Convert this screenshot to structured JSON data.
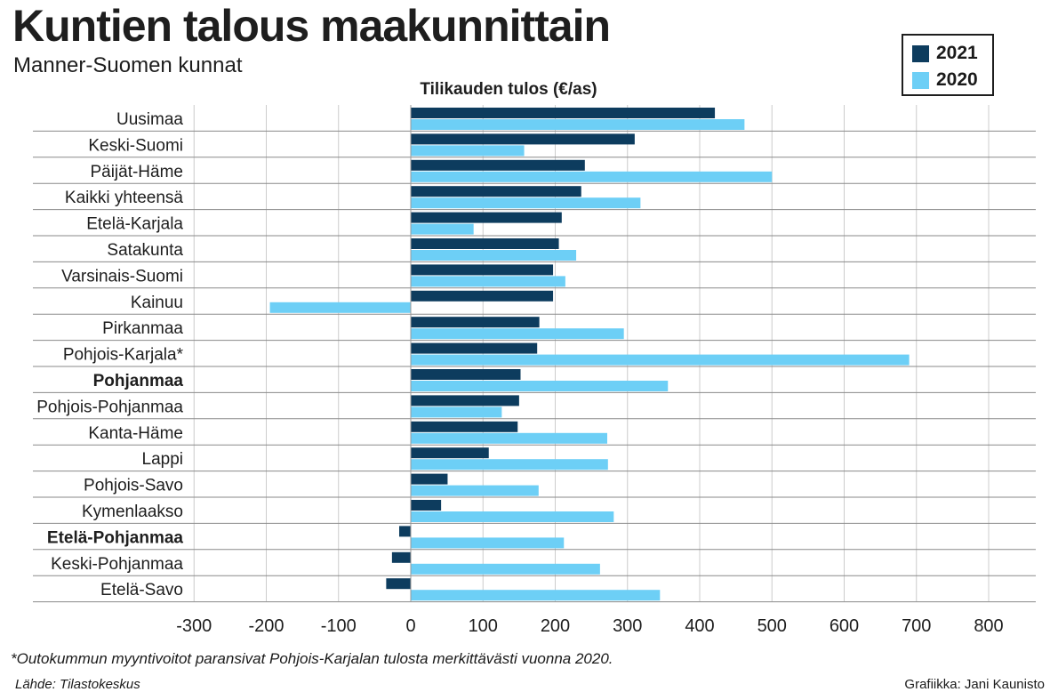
{
  "header": {
    "title": "Kuntien talous maakunnittain",
    "subtitle": "Manner-Suomen kunnat"
  },
  "colors": {
    "series_2021": "#0d3c5e",
    "series_2020": "#6dcff6",
    "row_line": "#8a8a8a",
    "grid": "#cccccc"
  },
  "chart_data": {
    "type": "bar",
    "orientation": "horizontal",
    "title": "Tilikauden tulos (€/as)",
    "categories": [
      "Uusimaa",
      "Keski-Suomi",
      "Päijät-Häme",
      "Kaikki yhteensä",
      "Etelä-Karjala",
      "Satakunta",
      "Varsinais-Suomi",
      "Kainuu",
      "Pirkanmaa",
      "Pohjois-Karjala*",
      "Pohjanmaa",
      "Pohjois-Pohjanmaa",
      "Kanta-Häme",
      "Lappi",
      "Pohjois-Savo",
      "Kymenlaakso",
      "Etelä-Pohjanmaa",
      "Keski-Pohjanmaa",
      "Etelä-Savo"
    ],
    "bold_categories": [
      "Pohjanmaa",
      "Etelä-Pohjanmaa"
    ],
    "series": [
      {
        "name": "2021",
        "values": [
          421,
          310,
          241,
          236,
          209,
          205,
          197,
          197,
          178,
          175,
          152,
          150,
          148,
          108,
          51,
          42,
          -16,
          -26,
          -34
        ]
      },
      {
        "name": "2020",
        "values": [
          462,
          157,
          500,
          318,
          87,
          229,
          214,
          -195,
          295,
          690,
          356,
          126,
          272,
          273,
          177,
          281,
          212,
          262,
          345
        ]
      }
    ],
    "xlim": [
      -300,
      850
    ],
    "xticks": [
      -300,
      -200,
      -100,
      0,
      100,
      200,
      300,
      400,
      500,
      600,
      700,
      800
    ],
    "grid": true,
    "legend_position": "top-right"
  },
  "footer": {
    "footnote": "*Outokummun myyntivoitot paransivat Pohjois-Karjalan tulosta merkittävästi vuonna 2020.",
    "source": "Lähde: Tilastokeskus",
    "credit": "Grafiikka: Jani Kaunisto"
  }
}
